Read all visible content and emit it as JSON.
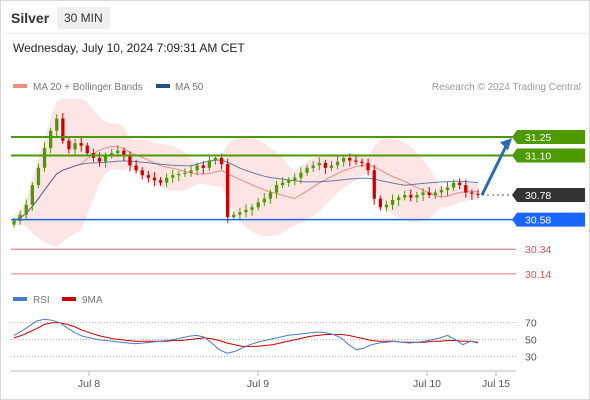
{
  "header": {
    "instrument": "Silver",
    "timeframe": "30 MIN",
    "datetime": "Wednesday, July 10, 2024 7:09:31 AM CET"
  },
  "legend": {
    "ma20": {
      "label": "MA 20 + Bollinger Bands",
      "color": "#f28b82"
    },
    "ma50": {
      "label": "MA 50",
      "color": "#1f4e8c"
    },
    "credit": "Research © 2024 Trading Central"
  },
  "rsi_legend": {
    "rsi": {
      "label": "RSI",
      "color": "#4a7bd0"
    },
    "ma9": {
      "label": "9MA",
      "color": "#cc0000"
    }
  },
  "colors": {
    "resistance": "#4c9a00",
    "support_main": "#1a66ff",
    "support_minor": "#e05050",
    "current": "#333333",
    "arrow": "#2b6cb0",
    "candle_up": "#4c9a00",
    "candle_down": "#d00000",
    "band_fill": "#fde0e0"
  },
  "chart_data": {
    "type": "candlestick",
    "ylim": [
      30.05,
      31.55
    ],
    "x_ticks": [
      "Jul 8",
      "Jul 9",
      "Jul 10",
      "Jul 15"
    ],
    "price_levels": [
      {
        "label": "31.25",
        "value": 31.25,
        "kind": "resistance"
      },
      {
        "label": "31.10",
        "value": 31.1,
        "kind": "resistance"
      },
      {
        "label": "30.78",
        "value": 30.78,
        "kind": "current"
      },
      {
        "label": "30.58",
        "value": 30.58,
        "kind": "support"
      },
      {
        "label": "30.34",
        "value": 30.34,
        "kind": "support-minor"
      },
      {
        "label": "30.14",
        "value": 30.14,
        "kind": "support-minor"
      }
    ],
    "close_series": [
      30.57,
      30.62,
      30.7,
      30.86,
      31.0,
      31.16,
      31.3,
      31.4,
      31.22,
      31.15,
      31.2,
      31.18,
      31.12,
      31.08,
      31.05,
      31.1,
      31.12,
      31.14,
      31.1,
      31.02,
      30.98,
      30.94,
      30.92,
      30.9,
      30.88,
      30.92,
      30.94,
      30.95,
      30.96,
      30.98,
      31.02,
      31.0,
      31.06,
      31.08,
      31.03,
      30.6,
      30.62,
      30.64,
      30.66,
      30.68,
      30.72,
      30.75,
      30.8,
      30.86,
      30.88,
      30.9,
      30.92,
      30.96,
      31.0,
      31.02,
      31.04,
      31.0,
      31.02,
      31.05,
      31.08,
      31.06,
      31.05,
      31.04,
      30.98,
      30.75,
      30.68,
      30.7,
      30.74,
      30.76,
      30.78,
      30.76,
      30.78,
      30.8,
      30.78,
      30.8,
      30.82,
      30.84,
      30.88,
      30.86,
      30.8,
      30.79,
      30.78
    ],
    "rsi": {
      "ylim": [
        20,
        85
      ],
      "levels": [
        70,
        50,
        30
      ],
      "rsi_series": [
        55,
        60,
        66,
        72,
        74,
        73,
        70,
        64,
        58,
        54,
        52,
        50,
        49,
        48,
        47,
        46,
        45,
        46,
        47,
        48,
        49,
        50,
        52,
        54,
        55,
        53,
        46,
        38,
        34,
        36,
        40,
        44,
        47,
        49,
        51,
        53,
        55,
        56,
        57,
        58,
        59,
        58,
        56,
        52,
        44,
        38,
        40,
        44,
        46,
        47,
        48,
        47,
        46,
        47,
        48,
        50,
        52,
        55,
        50,
        44,
        48,
        46
      ],
      "ma9_series": [
        52,
        55,
        59,
        63,
        68,
        70,
        70,
        68,
        65,
        61,
        58,
        55,
        53,
        51,
        50,
        49,
        48,
        48,
        48,
        48,
        48,
        49,
        49,
        50,
        51,
        52,
        51,
        49,
        46,
        44,
        42,
        42,
        42,
        43,
        44,
        46,
        48,
        50,
        52,
        54,
        55,
        56,
        56,
        56,
        55,
        53,
        51,
        49,
        48,
        48,
        48,
        47,
        47,
        47,
        47,
        48,
        48,
        49,
        49,
        48,
        48,
        47
      ]
    }
  }
}
